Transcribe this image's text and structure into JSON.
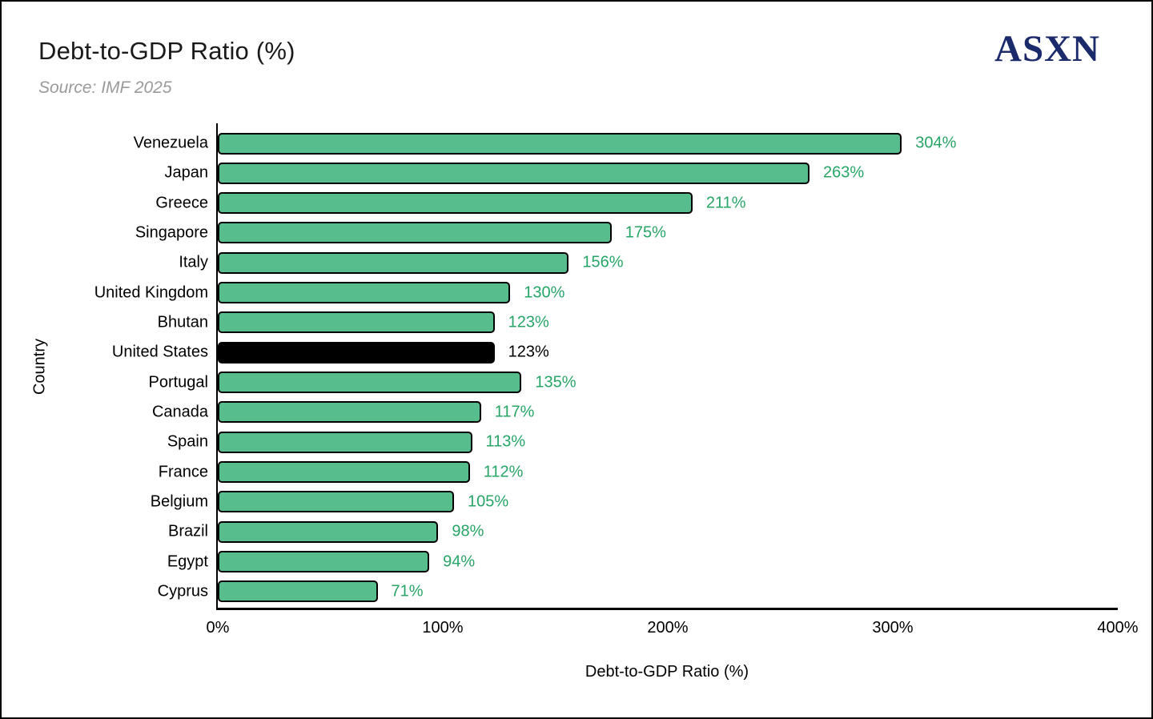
{
  "header": {
    "title": "Debt-to-GDP Ratio (%)",
    "subtitle": "Source: IMF 2025",
    "logo_text": "ASXN"
  },
  "chart_data": {
    "type": "bar",
    "orientation": "horizontal",
    "title": "Debt-to-GDP Ratio (%)",
    "source": "IMF 2025",
    "xlabel": "Debt-to-GDP Ratio (%)",
    "ylabel": "Country",
    "xlim": [
      0,
      400
    ],
    "x_tick_values": [
      0,
      100,
      200,
      300,
      400
    ],
    "x_tick_labels": [
      "0%",
      "100%",
      "200%",
      "300%",
      "400%"
    ],
    "grid": false,
    "legend": false,
    "categories": [
      "Venezuela",
      "Japan",
      "Greece",
      "Singapore",
      "Italy",
      "United Kingdom",
      "Bhutan",
      "United States",
      "Portugal",
      "Canada",
      "Spain",
      "France",
      "Belgium",
      "Brazil",
      "Egypt",
      "Cyprus"
    ],
    "values": [
      304,
      263,
      211,
      175,
      156,
      130,
      123,
      123,
      135,
      117,
      113,
      112,
      105,
      98,
      94,
      71
    ],
    "value_labels": [
      "304%",
      "263%",
      "211%",
      "175%",
      "156%",
      "130%",
      "123%",
      "123%",
      "135%",
      "117%",
      "113%",
      "112%",
      "105%",
      "98%",
      "94%",
      "71%"
    ],
    "highlight_category": "United States",
    "highlight_index": 7,
    "colors": {
      "bar_fill": "#58bd8c",
      "bar_border": "#000000",
      "bar_highlight_fill": "#000000",
      "value_label": "#27a567",
      "value_label_highlight": "#000000",
      "logo": "#1b2a6b",
      "subtitle": "#9a9a9a",
      "axis": "#000000"
    }
  }
}
